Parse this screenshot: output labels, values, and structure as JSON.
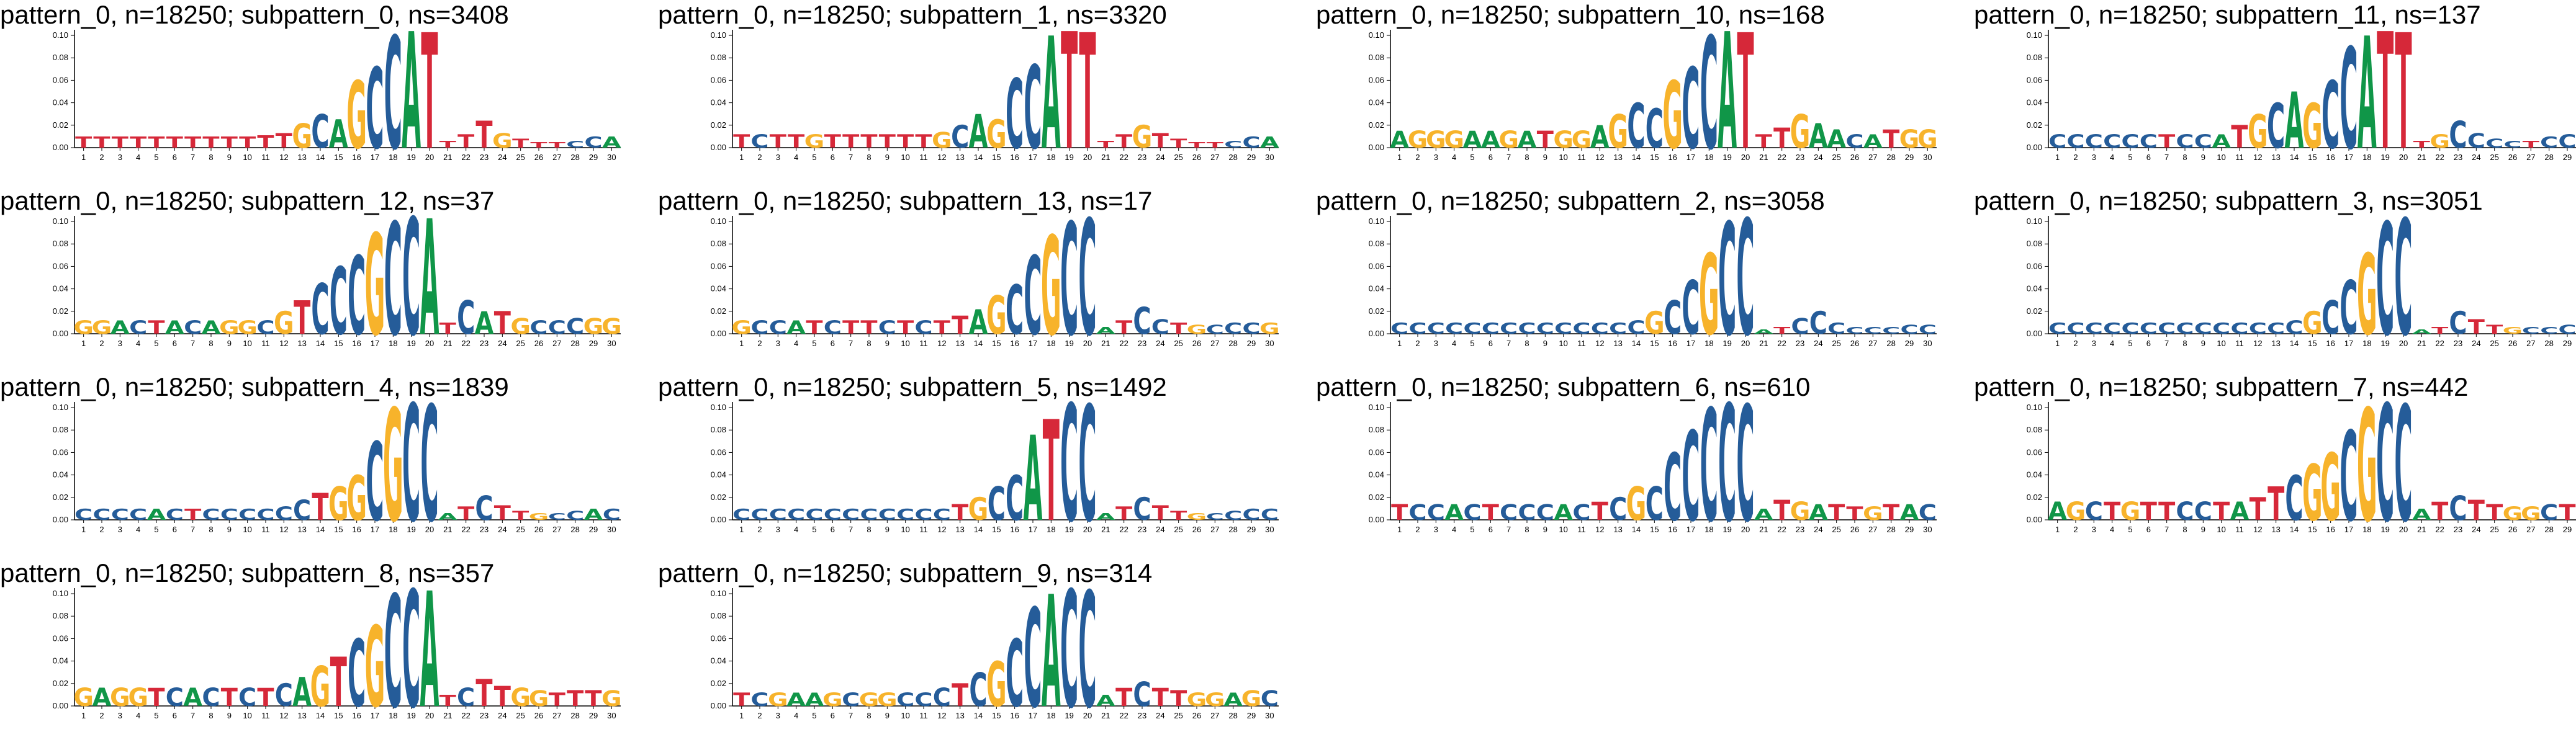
{
  "colors": {
    "A": "#109648",
    "C": "#255c99",
    "G": "#f7b32b",
    "T": "#d62839",
    "axis": "#000000"
  },
  "chart_data": [
    {
      "type": "sequence-logo",
      "title": "pattern_0, n=18250; subpattern_0, ns=3408",
      "consensus": "TTTTTTTTTTTTGCAGCCATTTTGTTTCCA",
      "heights": [
        0.01,
        0.01,
        0.01,
        0.01,
        0.01,
        0.01,
        0.01,
        0.01,
        0.01,
        0.01,
        0.011,
        0.013,
        0.022,
        0.03,
        0.025,
        0.06,
        0.072,
        0.1,
        0.104,
        0.103,
        0.006,
        0.012,
        0.024,
        0.013,
        0.008,
        0.005,
        0.005,
        0.006,
        0.01,
        0.01
      ],
      "ylim": [
        0,
        0.105
      ],
      "yticks": [
        0.0,
        0.02,
        0.04,
        0.06,
        0.08,
        0.1
      ],
      "x": [
        1,
        2,
        3,
        4,
        5,
        6,
        7,
        8,
        9,
        10,
        11,
        12,
        13,
        14,
        15,
        16,
        17,
        18,
        19,
        20,
        21,
        22,
        23,
        24,
        25,
        26,
        27,
        28,
        29,
        30
      ]
    },
    {
      "type": "sequence-logo",
      "title": "pattern_0, n=18250; subpattern_1, ns=3320",
      "consensus": "TCTTGTTTTTTGCAGCCATTTTGTTTTCCA",
      "heights": [
        0.012,
        0.012,
        0.012,
        0.012,
        0.012,
        0.012,
        0.012,
        0.012,
        0.012,
        0.012,
        0.012,
        0.014,
        0.02,
        0.03,
        0.025,
        0.062,
        0.074,
        0.1,
        0.104,
        0.103,
        0.006,
        0.012,
        0.02,
        0.013,
        0.008,
        0.005,
        0.005,
        0.006,
        0.01,
        0.01
      ],
      "ylim": [
        0,
        0.105
      ],
      "yticks": [
        0.0,
        0.02,
        0.04,
        0.06,
        0.08,
        0.1
      ],
      "x": [
        1,
        2,
        3,
        4,
        5,
        6,
        7,
        8,
        9,
        10,
        11,
        12,
        13,
        14,
        15,
        16,
        17,
        18,
        19,
        20,
        21,
        22,
        23,
        24,
        25,
        26,
        27,
        28,
        29,
        30
      ]
    },
    {
      "type": "sequence-logo",
      "title": "pattern_0, n=18250; subpattern_10, ns=168",
      "consensus": "AGGGAAGATGGAGCCGCCATTTGAACATGG",
      "heights": [
        0.015,
        0.015,
        0.015,
        0.015,
        0.015,
        0.015,
        0.015,
        0.015,
        0.015,
        0.015,
        0.015,
        0.02,
        0.03,
        0.04,
        0.035,
        0.06,
        0.072,
        0.1,
        0.104,
        0.103,
        0.012,
        0.018,
        0.03,
        0.022,
        0.016,
        0.012,
        0.012,
        0.016,
        0.016,
        0.016
      ],
      "ylim": [
        0,
        0.105
      ],
      "yticks": [
        0.0,
        0.02,
        0.04,
        0.06,
        0.08,
        0.1
      ],
      "x": [
        1,
        2,
        3,
        4,
        5,
        6,
        7,
        8,
        9,
        10,
        11,
        12,
        13,
        14,
        15,
        16,
        17,
        18,
        19,
        20,
        21,
        22,
        23,
        24,
        25,
        26,
        27,
        28,
        29,
        30
      ]
    },
    {
      "type": "sequence-logo",
      "title": "pattern_0, n=18250; subpattern_11, ns=137",
      "consensus": "CCCCCCTCCATGCAGCCATTTGCCCCTCCC",
      "heights": [
        0.012,
        0.012,
        0.012,
        0.012,
        0.012,
        0.012,
        0.012,
        0.012,
        0.012,
        0.012,
        0.02,
        0.03,
        0.04,
        0.05,
        0.04,
        0.06,
        0.09,
        0.1,
        0.104,
        0.103,
        0.006,
        0.012,
        0.024,
        0.013,
        0.008,
        0.006,
        0.006,
        0.01,
        0.012,
        0.012
      ],
      "ylim": [
        0,
        0.105
      ],
      "yticks": [
        0.0,
        0.02,
        0.04,
        0.06,
        0.08,
        0.1
      ],
      "x": [
        1,
        2,
        3,
        4,
        5,
        6,
        7,
        8,
        9,
        10,
        11,
        12,
        13,
        14,
        15,
        16,
        17,
        18,
        19,
        20,
        21,
        22,
        23,
        24,
        25,
        26,
        27,
        28,
        29,
        30
      ]
    },
    {
      "type": "sequence-logo",
      "title": "pattern_0, n=18250; subpattern_12, ns=37",
      "consensus": "GGACTACAGGCGTCCCGCCATCATGCCCGG",
      "heights": [
        0.012,
        0.012,
        0.012,
        0.012,
        0.012,
        0.012,
        0.012,
        0.012,
        0.012,
        0.012,
        0.012,
        0.02,
        0.03,
        0.045,
        0.06,
        0.07,
        0.09,
        0.1,
        0.104,
        0.103,
        0.01,
        0.03,
        0.02,
        0.02,
        0.014,
        0.012,
        0.012,
        0.014,
        0.014,
        0.014
      ],
      "ylim": [
        0,
        0.105
      ],
      "yticks": [
        0.0,
        0.02,
        0.04,
        0.06,
        0.08,
        0.1
      ],
      "x": [
        1,
        2,
        3,
        4,
        5,
        6,
        7,
        8,
        9,
        10,
        11,
        12,
        13,
        14,
        15,
        16,
        17,
        18,
        19,
        20,
        21,
        22,
        23,
        24,
        25,
        26,
        27,
        28,
        29,
        30
      ]
    },
    {
      "type": "sequence-logo",
      "title": "pattern_0, n=18250; subpattern_13, ns=17",
      "consensus": "GCCATCTTCTCTTAGCCGCCATCCTGCCCG",
      "heights": [
        0.012,
        0.012,
        0.012,
        0.012,
        0.012,
        0.012,
        0.012,
        0.012,
        0.012,
        0.012,
        0.012,
        0.012,
        0.016,
        0.022,
        0.034,
        0.044,
        0.07,
        0.088,
        0.1,
        0.103,
        0.006,
        0.012,
        0.024,
        0.013,
        0.01,
        0.008,
        0.008,
        0.01,
        0.01,
        0.01
      ],
      "ylim": [
        0,
        0.105
      ],
      "yticks": [
        0.0,
        0.02,
        0.04,
        0.06,
        0.08,
        0.1
      ],
      "x": [
        1,
        2,
        3,
        4,
        5,
        6,
        7,
        8,
        9,
        10,
        11,
        12,
        13,
        14,
        15,
        16,
        17,
        18,
        19,
        20,
        21,
        22,
        23,
        24,
        25,
        26,
        27,
        28,
        29,
        30
      ]
    },
    {
      "type": "sequence-logo",
      "title": "pattern_0, n=18250; subpattern_2, ns=3058",
      "consensus": "CCCCCCCCCCCCCCGCCGCCATCCCCCCCC",
      "heights": [
        0.01,
        0.01,
        0.01,
        0.01,
        0.01,
        0.01,
        0.01,
        0.01,
        0.01,
        0.01,
        0.01,
        0.01,
        0.01,
        0.012,
        0.02,
        0.03,
        0.048,
        0.072,
        0.1,
        0.103,
        0.004,
        0.006,
        0.014,
        0.02,
        0.01,
        0.006,
        0.006,
        0.006,
        0.008,
        0.008
      ],
      "ylim": [
        0,
        0.105
      ],
      "yticks": [
        0.0,
        0.02,
        0.04,
        0.06,
        0.08,
        0.1
      ],
      "x": [
        1,
        2,
        3,
        4,
        5,
        6,
        7,
        8,
        9,
        10,
        11,
        12,
        13,
        14,
        15,
        16,
        17,
        18,
        19,
        20,
        21,
        22,
        23,
        24,
        25,
        26,
        27,
        28,
        29,
        30
      ]
    },
    {
      "type": "sequence-logo",
      "title": "pattern_0, n=18250; subpattern_3, ns=3051",
      "consensus": "CCCCCCCCCCCCCCGCCGCCATCTTGCCCC",
      "heights": [
        0.01,
        0.01,
        0.01,
        0.01,
        0.01,
        0.01,
        0.01,
        0.01,
        0.01,
        0.01,
        0.01,
        0.01,
        0.01,
        0.012,
        0.02,
        0.03,
        0.048,
        0.072,
        0.1,
        0.103,
        0.004,
        0.006,
        0.02,
        0.013,
        0.008,
        0.006,
        0.006,
        0.006,
        0.008,
        0.008
      ],
      "ylim": [
        0,
        0.105
      ],
      "yticks": [
        0.0,
        0.02,
        0.04,
        0.06,
        0.08,
        0.1
      ],
      "x": [
        1,
        2,
        3,
        4,
        5,
        6,
        7,
        8,
        9,
        10,
        11,
        12,
        13,
        14,
        15,
        16,
        17,
        18,
        19,
        20,
        21,
        22,
        23,
        24,
        25,
        26,
        27,
        28,
        29,
        30
      ]
    },
    {
      "type": "sequence-logo",
      "title": "pattern_0, n=18250; subpattern_4, ns=1839",
      "consensus": "CCCCACTCCCCCCTGGCGCCATCTTGCCAC",
      "heights": [
        0.01,
        0.01,
        0.01,
        0.01,
        0.01,
        0.01,
        0.01,
        0.01,
        0.01,
        0.01,
        0.01,
        0.012,
        0.018,
        0.024,
        0.03,
        0.04,
        0.07,
        0.1,
        0.104,
        0.103,
        0.006,
        0.012,
        0.022,
        0.013,
        0.008,
        0.006,
        0.006,
        0.008,
        0.01,
        0.01
      ],
      "ylim": [
        0,
        0.105
      ],
      "yticks": [
        0.0,
        0.02,
        0.04,
        0.06,
        0.08,
        0.1
      ],
      "x": [
        1,
        2,
        3,
        4,
        5,
        6,
        7,
        8,
        9,
        10,
        11,
        12,
        13,
        14,
        15,
        16,
        17,
        18,
        19,
        20,
        21,
        22,
        23,
        24,
        25,
        26,
        27,
        28,
        29,
        30
      ]
    },
    {
      "type": "sequence-logo",
      "title": "pattern_0, n=18250; subpattern_5, ns=1492",
      "consensus": "CCCCCCCCCCCCTGCCATCCATCTTGCCCC",
      "heights": [
        0.01,
        0.01,
        0.01,
        0.01,
        0.01,
        0.01,
        0.01,
        0.01,
        0.01,
        0.01,
        0.01,
        0.01,
        0.014,
        0.02,
        0.03,
        0.04,
        0.076,
        0.09,
        0.104,
        0.103,
        0.006,
        0.012,
        0.02,
        0.013,
        0.008,
        0.006,
        0.006,
        0.008,
        0.01,
        0.01
      ],
      "ylim": [
        0,
        0.105
      ],
      "yticks": [
        0.0,
        0.02,
        0.04,
        0.06,
        0.08,
        0.1
      ],
      "x": [
        1,
        2,
        3,
        4,
        5,
        6,
        7,
        8,
        9,
        10,
        11,
        12,
        13,
        14,
        15,
        16,
        17,
        18,
        19,
        20,
        21,
        22,
        23,
        24,
        25,
        26,
        27,
        28,
        29,
        30
      ]
    },
    {
      "type": "sequence-logo",
      "title": "pattern_0, n=18250; subpattern_6, ns=610",
      "consensus": "TCCACTCCCACTCGCCCCCCATGATTGTAC",
      "heights": [
        0.014,
        0.014,
        0.014,
        0.014,
        0.014,
        0.014,
        0.014,
        0.014,
        0.014,
        0.014,
        0.014,
        0.016,
        0.02,
        0.03,
        0.03,
        0.06,
        0.08,
        0.1,
        0.104,
        0.103,
        0.01,
        0.018,
        0.016,
        0.014,
        0.014,
        0.012,
        0.012,
        0.014,
        0.014,
        0.014
      ],
      "ylim": [
        0,
        0.105
      ],
      "yticks": [
        0.0,
        0.02,
        0.04,
        0.06,
        0.08,
        0.1
      ],
      "x": [
        1,
        2,
        3,
        4,
        5,
        6,
        7,
        8,
        9,
        10,
        11,
        12,
        13,
        14,
        15,
        16,
        17,
        18,
        19,
        20,
        21,
        22,
        23,
        24,
        25,
        26,
        27,
        28,
        29,
        30
      ]
    },
    {
      "type": "sequence-logo",
      "title": "pattern_0, n=18250; subpattern_7, ns=442",
      "consensus": "AGCTGTTCCTATTCGGCGCCATCTTGGCTC",
      "heights": [
        0.016,
        0.016,
        0.016,
        0.016,
        0.016,
        0.016,
        0.016,
        0.016,
        0.016,
        0.016,
        0.016,
        0.02,
        0.03,
        0.04,
        0.05,
        0.06,
        0.08,
        0.1,
        0.104,
        0.103,
        0.01,
        0.016,
        0.022,
        0.018,
        0.014,
        0.012,
        0.012,
        0.014,
        0.014,
        0.014
      ],
      "ylim": [
        0,
        0.105
      ],
      "yticks": [
        0.0,
        0.02,
        0.04,
        0.06,
        0.08,
        0.1
      ],
      "x": [
        1,
        2,
        3,
        4,
        5,
        6,
        7,
        8,
        9,
        10,
        11,
        12,
        13,
        14,
        15,
        16,
        17,
        18,
        19,
        20,
        21,
        22,
        23,
        24,
        25,
        26,
        27,
        28,
        29,
        30
      ]
    },
    {
      "type": "sequence-logo",
      "title": "pattern_0, n=18250; subpattern_8, ns=357",
      "consensus": "GAGGTCACTCTCAGTCGCCATCTTGGTTTG",
      "heights": [
        0.016,
        0.016,
        0.016,
        0.016,
        0.016,
        0.016,
        0.016,
        0.016,
        0.016,
        0.016,
        0.016,
        0.02,
        0.026,
        0.036,
        0.044,
        0.06,
        0.072,
        0.1,
        0.104,
        0.103,
        0.01,
        0.016,
        0.024,
        0.018,
        0.016,
        0.014,
        0.012,
        0.014,
        0.014,
        0.014
      ],
      "ylim": [
        0,
        0.105
      ],
      "yticks": [
        0.0,
        0.02,
        0.04,
        0.06,
        0.08,
        0.1
      ],
      "x": [
        1,
        2,
        3,
        4,
        5,
        6,
        7,
        8,
        9,
        10,
        11,
        12,
        13,
        14,
        15,
        16,
        17,
        18,
        19,
        20,
        21,
        22,
        23,
        24,
        25,
        26,
        27,
        28,
        29,
        30
      ]
    },
    {
      "type": "sequence-logo",
      "title": "pattern_0, n=18250; subpattern_9, ns=314",
      "consensus": "TCGAAGCGGCCCTCGCCACCATCTTGGAGC",
      "heights": [
        0.012,
        0.012,
        0.012,
        0.012,
        0.012,
        0.012,
        0.012,
        0.012,
        0.012,
        0.012,
        0.012,
        0.016,
        0.02,
        0.03,
        0.04,
        0.06,
        0.088,
        0.1,
        0.104,
        0.103,
        0.01,
        0.016,
        0.022,
        0.016,
        0.014,
        0.012,
        0.012,
        0.012,
        0.014,
        0.014
      ],
      "ylim": [
        0,
        0.105
      ],
      "yticks": [
        0.0,
        0.02,
        0.04,
        0.06,
        0.08,
        0.1
      ],
      "x": [
        1,
        2,
        3,
        4,
        5,
        6,
        7,
        8,
        9,
        10,
        11,
        12,
        13,
        14,
        15,
        16,
        17,
        18,
        19,
        20,
        21,
        22,
        23,
        24,
        25,
        26,
        27,
        28,
        29,
        30
      ]
    }
  ]
}
